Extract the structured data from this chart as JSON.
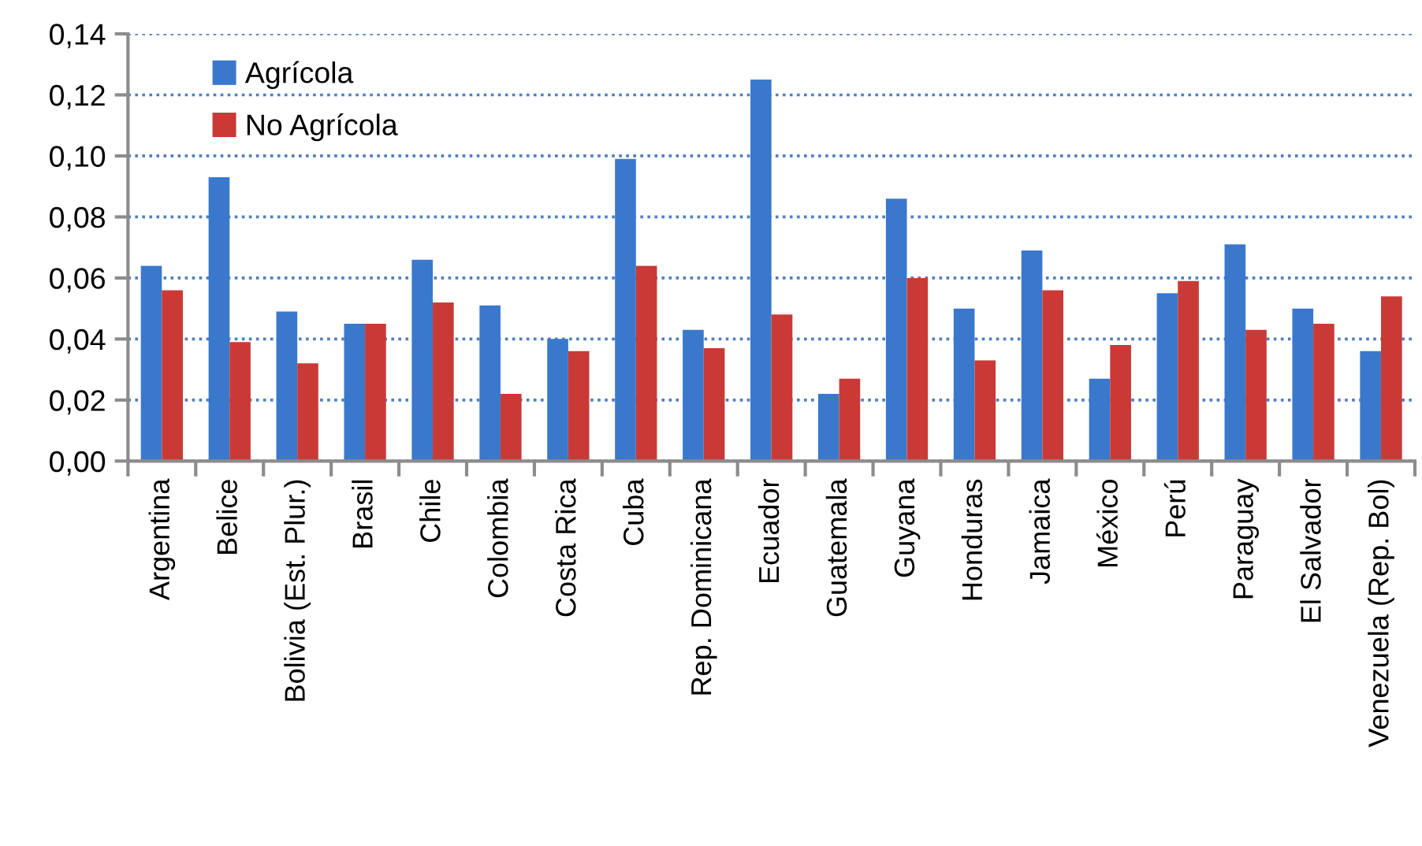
{
  "chart_data": {
    "type": "bar",
    "categories": [
      "Argentina",
      "Belice",
      "Bolivia (Est. Plur.)",
      "Brasil",
      "Chile",
      "Colombia",
      "Costa Rica",
      "Cuba",
      "Rep. Dominicana",
      "Ecuador",
      "Guatemala",
      "Guyana",
      "Honduras",
      "Jamaica",
      "México",
      "Perú",
      "Paraguay",
      "El Salvador",
      "Venezuela (Rep. Bol)"
    ],
    "series": [
      {
        "name": "Agrícola",
        "color": "#3a78cc",
        "values": [
          0.064,
          0.093,
          0.049,
          0.045,
          0.066,
          0.051,
          0.04,
          0.099,
          0.043,
          0.125,
          0.022,
          0.086,
          0.05,
          0.069,
          0.027,
          0.055,
          0.071,
          0.05,
          0.036
        ]
      },
      {
        "name": "No Agrícola",
        "color": "#c93a36",
        "values": [
          0.056,
          0.039,
          0.032,
          0.045,
          0.052,
          0.022,
          0.036,
          0.064,
          0.037,
          0.048,
          0.027,
          0.06,
          0.033,
          0.056,
          0.038,
          0.059,
          0.043,
          0.045,
          0.054
        ]
      }
    ],
    "ylim": [
      0,
      0.14
    ],
    "yticks": [
      {
        "value": 0,
        "label": "0,00"
      },
      {
        "value": 0.02,
        "label": "0,02"
      },
      {
        "value": 0.04,
        "label": "0,04"
      },
      {
        "value": 0.06,
        "label": "0,06"
      },
      {
        "value": 0.08,
        "label": "0,08"
      },
      {
        "value": 0.1,
        "label": "0,10"
      },
      {
        "value": 0.12,
        "label": "0,12"
      },
      {
        "value": 0.14,
        "label": "0,14"
      }
    ],
    "grid": "y",
    "legend": "top left"
  }
}
